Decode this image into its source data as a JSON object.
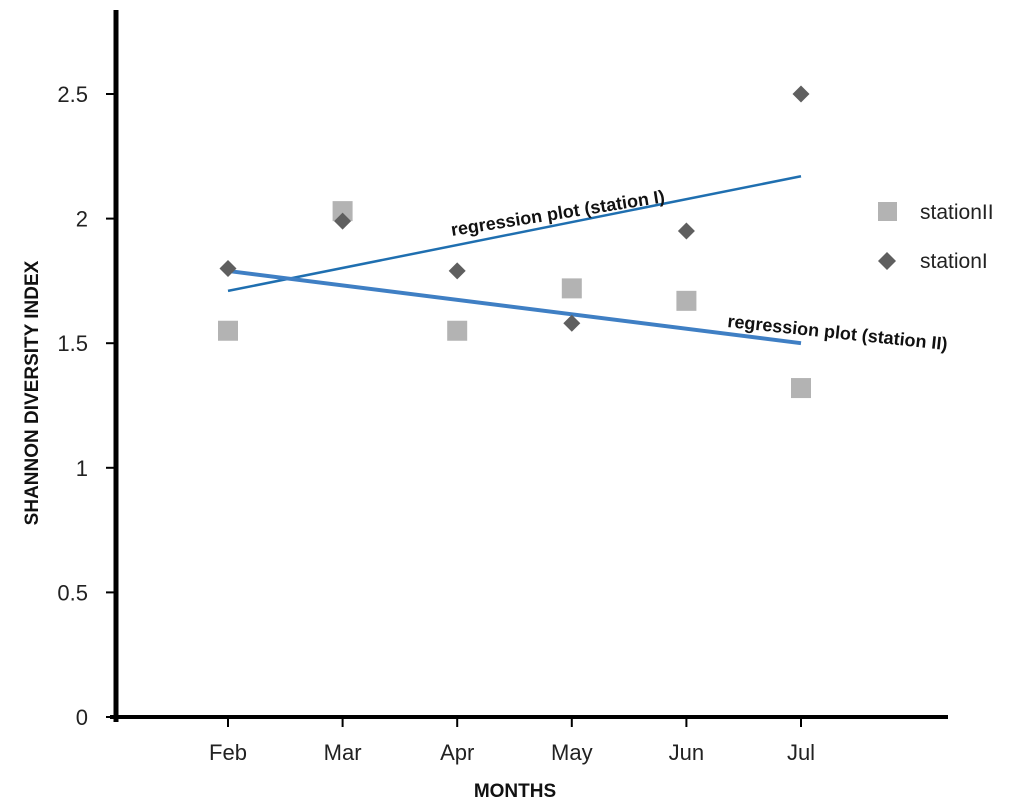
{
  "chart_data": {
    "type": "scatter",
    "xlabel": "MONTHS",
    "ylabel": "SHANNON DIVERSITY INDEX",
    "categories": [
      "Feb",
      "Mar",
      "Apr",
      "May",
      "Jun",
      "Jul"
    ],
    "ylim": [
      0,
      2.5
    ],
    "yticks": [
      "0",
      "0.5",
      "1",
      "1.5",
      "2",
      "2.5"
    ],
    "grid": false,
    "legend_position": "right",
    "series": [
      {
        "name": "stationII",
        "marker": "square",
        "color": "#b3b3b3",
        "values": [
          1.55,
          2.03,
          1.55,
          1.72,
          1.67,
          1.32
        ]
      },
      {
        "name": "stationI",
        "marker": "diamond",
        "color": "#5f5f5f",
        "values": [
          1.8,
          1.99,
          1.79,
          1.58,
          1.95,
          2.5
        ]
      }
    ],
    "regression_lines": [
      {
        "label": "regression plot (station I)",
        "color": "#1f6fb0",
        "start": [
          "Feb",
          1.71
        ],
        "end": [
          "Jul",
          2.17
        ]
      },
      {
        "label": "regression plot (station II)",
        "color": "#3f7fc4",
        "start": [
          "Feb",
          1.79
        ],
        "end": [
          "Jul",
          1.5
        ]
      }
    ]
  }
}
